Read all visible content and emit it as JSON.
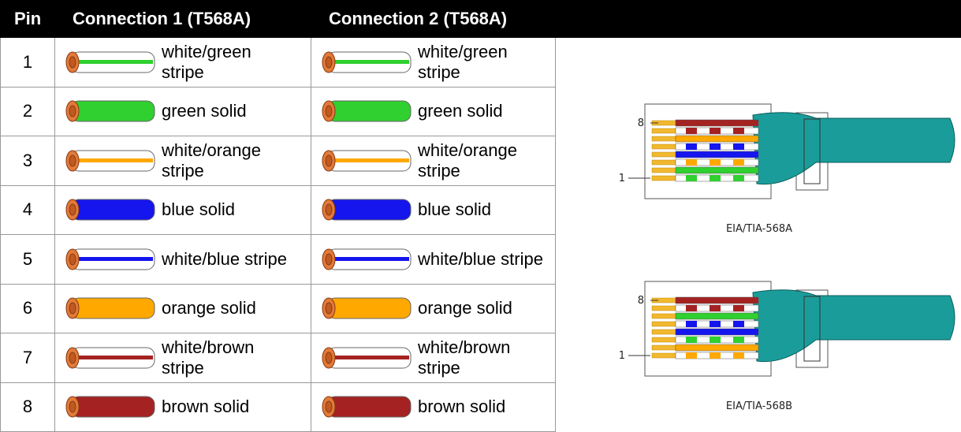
{
  "table": {
    "header": [
      "Pin",
      "Connection 1 (T568A)",
      "Connection 2 (T568A)"
    ],
    "rows": [
      [
        "1",
        "white/green stripe",
        "white/green stripe"
      ],
      [
        "2",
        "green solid",
        "green solid"
      ],
      [
        "3",
        "white/orange stripe",
        "white/orange stripe"
      ],
      [
        "4",
        "blue solid",
        "blue solid"
      ],
      [
        "5",
        "white/blue stripe",
        "white/blue stripe"
      ],
      [
        "6",
        "orange solid",
        "orange solid"
      ],
      [
        "7",
        "white/brown stripe",
        "white/brown stripe"
      ],
      [
        "8",
        "brown solid",
        "brown solid"
      ]
    ]
  },
  "diagrams": [
    {
      "pin_top": "8",
      "pin_bottom": "1",
      "caption": "EIA/TIA-568A"
    },
    {
      "pin_top": "8",
      "pin_bottom": "1",
      "caption": "EIA/TIA-568B"
    }
  ]
}
